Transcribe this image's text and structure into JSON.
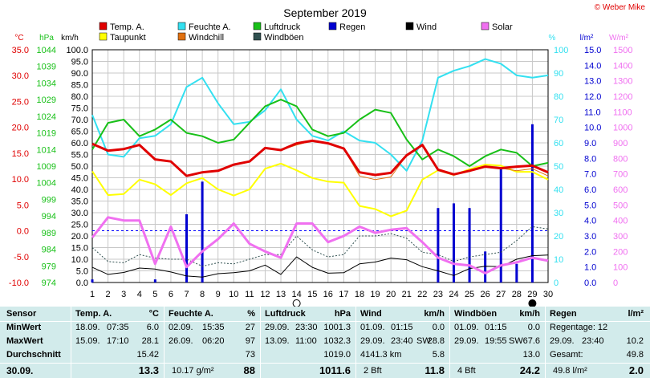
{
  "copyright": "© Weber Mike",
  "chart_data": {
    "type": "line",
    "title": "September 2019",
    "x": [
      1,
      2,
      3,
      4,
      5,
      6,
      7,
      8,
      9,
      10,
      11,
      12,
      13,
      14,
      15,
      16,
      17,
      18,
      19,
      20,
      21,
      22,
      23,
      24,
      25,
      26,
      27,
      28,
      29,
      30
    ],
    "xlim": [
      1,
      30
    ],
    "grid": true,
    "legend_placement": "top",
    "legend": [
      {
        "label": "Temp. A.",
        "color": "#e00000"
      },
      {
        "label": "Feuchte A.",
        "color": "#33e0f0"
      },
      {
        "label": "Luftdruck",
        "color": "#18c018"
      },
      {
        "label": "Regen",
        "color": "#0000d0"
      },
      {
        "label": "Wind",
        "color": "#000000"
      },
      {
        "label": "Solar",
        "color": "#f070f0"
      },
      {
        "label": "Taupunkt",
        "color": "#ffff00"
      },
      {
        "label": "Windchill",
        "color": "#e07010"
      },
      {
        "label": "Windböen",
        "color": "#305050"
      }
    ],
    "axes": {
      "temp": {
        "label": "°C",
        "color": "#e00000",
        "range": [
          -10,
          35
        ],
        "ticks": [
          "35.0",
          "30.0",
          "25.0",
          "20.0",
          "15.0",
          "10.0",
          "5.0",
          "0.0",
          "-5.0",
          "-10.0"
        ]
      },
      "pressure": {
        "label": "hPa",
        "color": "#18c018",
        "range": [
          974,
          1044
        ],
        "ticks": [
          "1044",
          "1039",
          "1034",
          "1029",
          "1024",
          "1019",
          "1014",
          "1009",
          "1004",
          "999",
          "994",
          "989",
          "984",
          "979",
          "974"
        ]
      },
      "wind": {
        "label": "km/h",
        "color": "#000000",
        "range": [
          0,
          100
        ],
        "ticks": [
          "100.0",
          "95.0",
          "90.0",
          "85.0",
          "80.0",
          "75.0",
          "70.0",
          "65.0",
          "60.0",
          "55.0",
          "50.0",
          "45.0",
          "40.0",
          "35.0",
          "30.0",
          "25.0",
          "20.0",
          "15.0",
          "10.0",
          "5.0",
          "0.0"
        ]
      },
      "humidity": {
        "label": "%",
        "color": "#33e0f0",
        "range": [
          0,
          100
        ],
        "ticks": [
          "100",
          "90",
          "80",
          "70",
          "60",
          "50",
          "40",
          "30",
          "20",
          "10",
          "0"
        ]
      },
      "rain": {
        "label": "l/m²",
        "color": "#0000d0",
        "range": [
          0,
          15
        ],
        "ticks": [
          "15.0",
          "14.0",
          "13.0",
          "12.0",
          "11.0",
          "10.0",
          "9.0",
          "8.0",
          "7.0",
          "6.0",
          "5.0",
          "4.0",
          "3.0",
          "2.0",
          "1.0",
          "0.0"
        ]
      },
      "solar": {
        "label": "W/m²",
        "color": "#f070f0",
        "range": [
          0,
          1500
        ],
        "ticks": [
          "1500",
          "1400",
          "1300",
          "1200",
          "1100",
          "1000",
          "900",
          "800",
          "700",
          "600",
          "500",
          "400",
          "300",
          "200",
          "100",
          "0"
        ]
      }
    },
    "series": [
      {
        "name": "Temp. A.",
        "axis": "temp",
        "color": "#e00000",
        "width": 3,
        "values": [
          16.8,
          15.5,
          15.8,
          16.6,
          13.8,
          13.4,
          10.6,
          11.3,
          11.6,
          12.8,
          13.4,
          16.0,
          15.6,
          16.9,
          17.4,
          16.9,
          15.9,
          11.3,
          10.8,
          11.2,
          14.6,
          16.6,
          11.8,
          10.9,
          11.6,
          12.4,
          12.1,
          12.4,
          12.6,
          11.3
        ]
      },
      {
        "name": "Windchill",
        "axis": "temp",
        "color": "#e07010",
        "width": 1,
        "values": [
          16.8,
          15.5,
          15.8,
          16.6,
          13.8,
          13.4,
          10.6,
          11.3,
          11.6,
          12.8,
          13.4,
          16.0,
          15.6,
          16.6,
          17.4,
          16.9,
          15.9,
          10.6,
          9.9,
          10.4,
          14.6,
          16.6,
          11.8,
          10.9,
          11.6,
          12.4,
          12.1,
          11.6,
          12.0,
          10.6
        ]
      },
      {
        "name": "Taupunkt",
        "axis": "temp",
        "color": "#ffff00",
        "width": 2,
        "values": [
          11.5,
          6.9,
          7.1,
          9.9,
          9.0,
          6.9,
          9.2,
          10.2,
          8.0,
          6.8,
          8.0,
          12.0,
          13.0,
          11.7,
          10.2,
          9.5,
          9.3,
          4.8,
          4.2,
          2.8,
          3.9,
          9.9,
          11.7,
          10.8,
          11.9,
          12.8,
          12.6,
          11.4,
          11.4,
          9.9
        ]
      },
      {
        "name": "Luftdruck",
        "axis": "pressure",
        "color": "#18c018",
        "width": 2,
        "values": [
          1014,
          1022,
          1023,
          1018,
          1020,
          1023,
          1019,
          1018,
          1016,
          1017,
          1022,
          1027,
          1029,
          1027,
          1020,
          1018,
          1019,
          1023,
          1026,
          1025,
          1017,
          1011,
          1014,
          1012,
          1009,
          1012,
          1014,
          1013,
          1009,
          1010
        ]
      },
      {
        "name": "Feuchte A.",
        "axis": "humidity",
        "color": "#33e0f0",
        "width": 2,
        "values": [
          72,
          55,
          54,
          62,
          63,
          68,
          84,
          88,
          77,
          68,
          69,
          74,
          83,
          70,
          63,
          61,
          65,
          61,
          60,
          55,
          48,
          61,
          88,
          91,
          93,
          96,
          94,
          89,
          88,
          89
        ]
      },
      {
        "name": "Wind",
        "axis": "wind",
        "color": "#000000",
        "width": 1,
        "values": [
          6.5,
          3.5,
          4.3,
          6.2,
          5.8,
          4.5,
          2.8,
          2.3,
          3.8,
          4.2,
          5.0,
          7.5,
          3.5,
          11.0,
          6.5,
          4.0,
          4.2,
          8.0,
          8.8,
          10.5,
          9.8,
          6.8,
          5.0,
          3.0,
          6.0,
          7.0,
          6.8,
          10.0,
          11.5,
          11.8
        ]
      },
      {
        "name": "Windböen",
        "axis": "wind",
        "color": "#305050",
        "width": 1,
        "dash": "2,2",
        "values": [
          15.0,
          9.0,
          8.5,
          12.0,
          10.5,
          10.0,
          10.0,
          7.0,
          8.5,
          8.0,
          10.0,
          12.0,
          12.0,
          20.0,
          14.0,
          11.0,
          12.0,
          20.0,
          20.0,
          21.0,
          19.0,
          13.0,
          12.0,
          9.0,
          11.0,
          12.0,
          13.0,
          18.0,
          24.0,
          23.0
        ]
      },
      {
        "name": "Solar",
        "axis": "solar",
        "color": "#f070f0",
        "width": 3,
        "values": [
          290,
          420,
          400,
          400,
          120,
          360,
          100,
          200,
          280,
          380,
          250,
          200,
          160,
          380,
          380,
          260,
          300,
          360,
          320,
          340,
          350,
          260,
          160,
          120,
          110,
          60,
          110,
          130,
          160,
          140
        ]
      }
    ],
    "rain": {
      "name": "Regen",
      "axis": "rain",
      "color": "#0000d0",
      "days": [
        1,
        5,
        7,
        8,
        23,
        24,
        25,
        26,
        27,
        28,
        29
      ],
      "values": [
        0.2,
        0.2,
        4.4,
        6.5,
        4.8,
        5.1,
        4.8,
        2.0,
        7.3,
        1.2,
        10.2
      ]
    },
    "dotted_line": {
      "axis": "temp",
      "value": 0.0,
      "color": "#0000ff"
    },
    "moon_markers": [
      {
        "day": 14,
        "symbol": "full"
      },
      {
        "day": 29,
        "symbol": "new"
      }
    ]
  },
  "table": {
    "row_labels": [
      "Sensor",
      "MinWert",
      "MaxWert",
      "Durchschnitt",
      "30.09."
    ],
    "temp": {
      "header": "Temp. A.",
      "unit": "°C",
      "min_date": "18.09.",
      "min_time": "07:35",
      "min": "6.0",
      "max_date": "15.09.",
      "max_time": "17:10",
      "max": "28.1",
      "avg": "15.42",
      "today": "13.3"
    },
    "humidity": {
      "header": "Feuchte A.",
      "unit": "%",
      "min_date": "02.09.",
      "min_time": "15:35",
      "min": "27",
      "max_date": "26.09.",
      "max_time": "06:20",
      "max": "97",
      "avg": "73",
      "extra": "10.17 g/m²",
      "today": "88"
    },
    "pressure": {
      "header": "Luftdruck",
      "unit": "hPa",
      "min_date": "29.09.",
      "min_time": "23:30",
      "min": "1001.3",
      "max_date": "13.09.",
      "max_time": "11:00",
      "max": "1032.3",
      "avg": "1019.0",
      "today": "1011.6"
    },
    "wind": {
      "header": "Wind",
      "unit": "km/h",
      "min_date": "01.09.",
      "min_time": "01:15",
      "min": "0.0",
      "max_date": "29.09.",
      "max_time": "23:40",
      "max_dir": "SW",
      "max": "28.8",
      "dist": "4141.3 km",
      "avg": "5.8",
      "bft": "2 Bft",
      "today": "11.8"
    },
    "gust": {
      "header": "Windböen",
      "unit": "km/h",
      "min_date": "01.09.",
      "min_time": "01:15",
      "min": "0.0",
      "max_date": "29.09.",
      "max_time": "19:55",
      "max_dir": "SW",
      "max": "67.6",
      "avg": "13.0",
      "bft": "4 Bft",
      "today": "24.2"
    },
    "rain": {
      "header": "Regen",
      "unit": "l/m²",
      "days_label": "Regentage: 12",
      "max_date": "29.09.",
      "max_time": "23:40",
      "max": "10.2",
      "total_label": "Gesamt:",
      "total": "49.8",
      "month": "49.8 l/m²",
      "today": "2.0"
    }
  }
}
